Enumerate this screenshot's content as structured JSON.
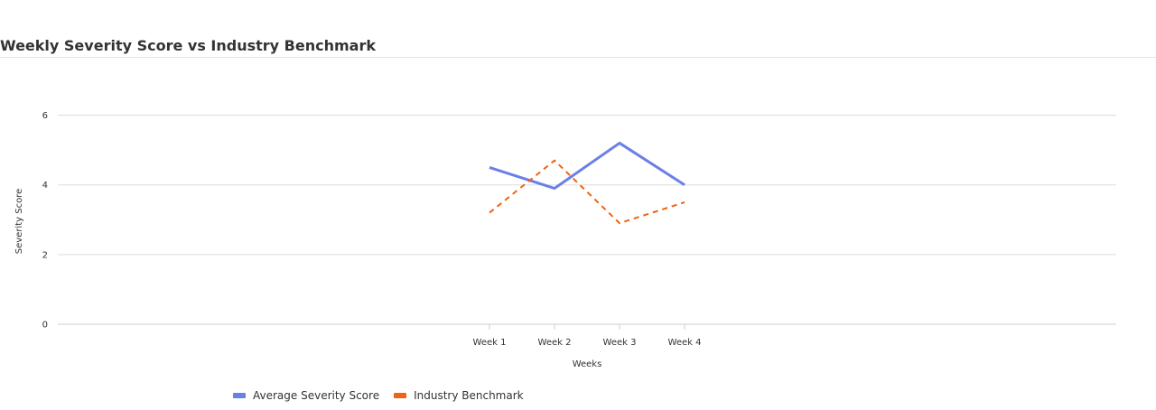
{
  "chart_data": {
    "type": "line",
    "title": "Weekly Severity Score vs Industry Benchmark",
    "xlabel": "Weeks",
    "ylabel": "Severity Score",
    "categories": [
      "Week 1",
      "Week 2",
      "Week 3",
      "Week 4"
    ],
    "ylim": [
      0,
      7
    ],
    "yticks": [
      0,
      2,
      4,
      6
    ],
    "grid": true,
    "legend_position": "bottom",
    "series": [
      {
        "name": "Average Severity Score",
        "values": [
          4.5,
          3.9,
          5.2,
          4.0
        ],
        "color": "#6b7fe8",
        "dash": "solid"
      },
      {
        "name": "Industry Benchmark",
        "values": [
          3.2,
          4.7,
          2.9,
          3.5
        ],
        "color": "#f06313",
        "dash": "dashed"
      }
    ]
  }
}
